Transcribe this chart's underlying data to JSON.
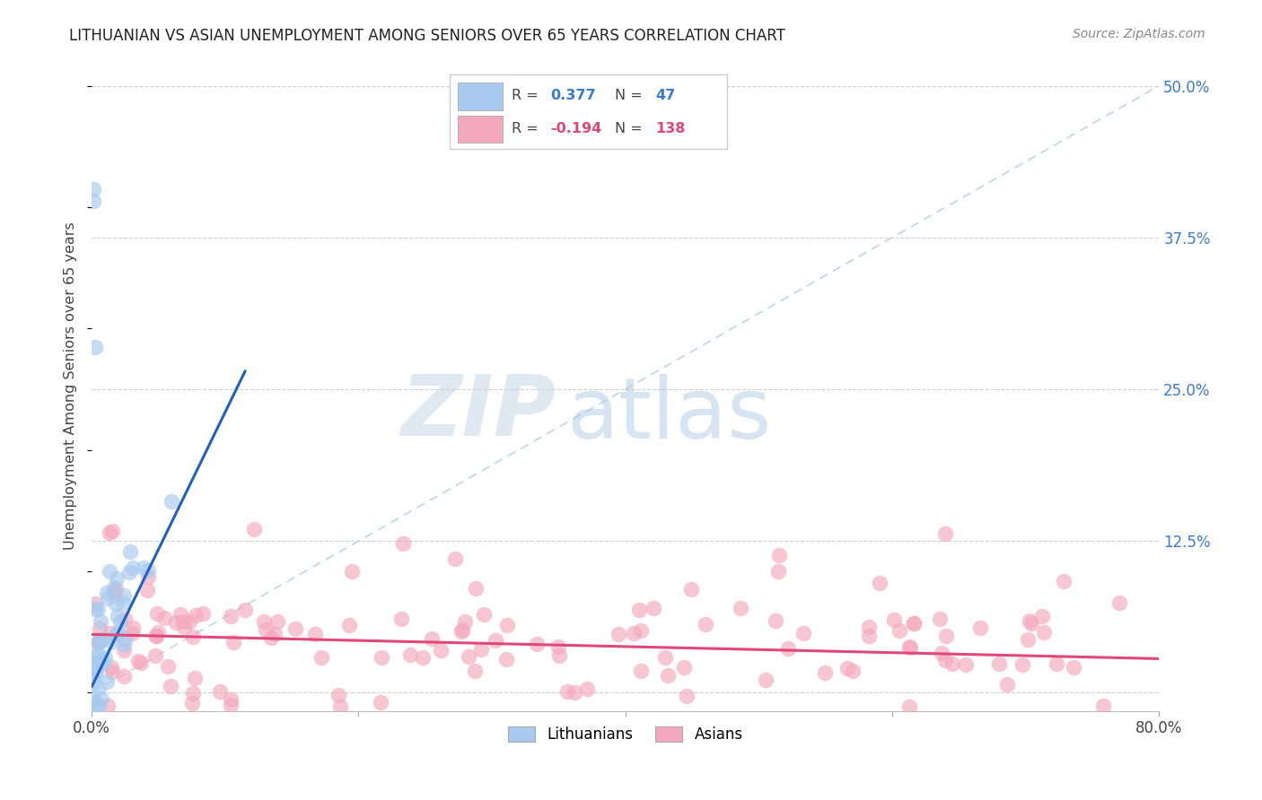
{
  "title": "LITHUANIAN VS ASIAN UNEMPLOYMENT AMONG SENIORS OVER 65 YEARS CORRELATION CHART",
  "source": "Source: ZipAtlas.com",
  "ylabel": "Unemployment Among Seniors over 65 years",
  "xlim": [
    0.0,
    0.8
  ],
  "ylim": [
    -0.015,
    0.52
  ],
  "xticks": [
    0.0,
    0.2,
    0.4,
    0.6,
    0.8
  ],
  "xticklabels": [
    "0.0%",
    "",
    "",
    "",
    "80.0%"
  ],
  "ytick_right": [
    0.0,
    0.125,
    0.25,
    0.375,
    0.5
  ],
  "ytick_right_labels": [
    "",
    "12.5%",
    "25.0%",
    "37.5%",
    "50.0%"
  ],
  "R_lith": 0.377,
  "N_lith": 47,
  "R_asian": -0.194,
  "N_asian": 138,
  "lith_color": "#a8caee",
  "asian_color": "#f4a8be",
  "lith_line_color": "#2060c0",
  "asian_line_color": "#e04878",
  "diagonal_color": "#b8d0e8",
  "watermark_zip": "ZIP",
  "watermark_atlas": "atlas",
  "background_color": "#ffffff"
}
